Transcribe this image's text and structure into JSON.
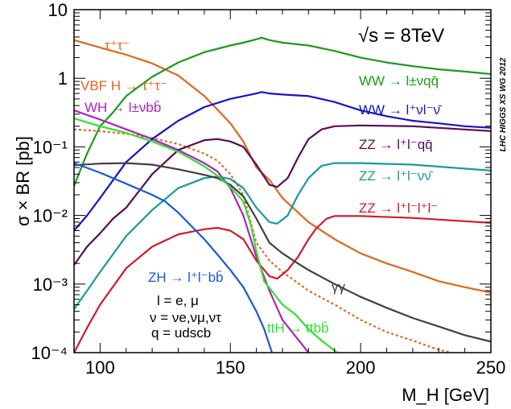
{
  "chart_data": {
    "type": "line",
    "title": "",
    "xlabel": "M_H [GeV]",
    "ylabel": "σ × BR [pb]",
    "xlim": [
      90,
      250
    ],
    "ylim": [
      0.0001,
      10
    ],
    "yscale": "log",
    "grid": false,
    "x_ticks": [
      100,
      150,
      200,
      250
    ],
    "y_ticks": [
      0.0001,
      0.001,
      0.01,
      0.1,
      1,
      10
    ],
    "y_tick_labels": [
      "10⁻⁴",
      "10⁻³",
      "10⁻²",
      "10⁻¹",
      "1",
      "10"
    ],
    "energy_label": "√s = 8TeV",
    "watermark": "LHC HIGGS XS WG 2012",
    "notes": [
      "l = e, μ",
      "ν = νe,νμ,ντ",
      "q = udscb"
    ],
    "series": [
      {
        "name": "τ⁺τ⁻",
        "color": "#e0661e",
        "dashed": false,
        "x": [
          90,
          100,
          110,
          120,
          130,
          140,
          145,
          150,
          155,
          160,
          165,
          170,
          175,
          180,
          190,
          200,
          210,
          220,
          230,
          240,
          250
        ],
        "y": [
          3.6,
          2.8,
          2.2,
          1.65,
          1.1,
          0.55,
          0.35,
          0.22,
          0.12,
          0.05,
          0.033,
          0.018,
          0.012,
          0.008,
          0.0045,
          0.0028,
          0.002,
          0.0015,
          0.0011,
          0.0009,
          0.00075
        ]
      },
      {
        "name": "VBF H → τ⁺τ⁻",
        "color": "#e0661e",
        "dashed": true,
        "x": [
          90,
          100,
          110,
          120,
          130,
          140,
          145,
          150,
          155,
          160,
          165,
          170,
          175,
          180,
          190,
          200,
          210,
          220,
          230,
          235
        ],
        "y": [
          0.18,
          0.17,
          0.155,
          0.135,
          0.11,
          0.08,
          0.063,
          0.04,
          0.02,
          0.004,
          0.0022,
          0.0015,
          0.0011,
          0.0008,
          0.0005,
          0.0003,
          0.0002,
          0.00015,
          0.00011,
          0.0001
        ]
      },
      {
        "name": "WH → l±νbb̄",
        "color": "#b020c0",
        "dashed": false,
        "x": [
          90,
          100,
          110,
          120,
          130,
          140,
          145,
          150,
          155,
          160,
          165,
          170,
          180
        ],
        "y": [
          0.34,
          0.25,
          0.18,
          0.13,
          0.09,
          0.058,
          0.044,
          0.025,
          0.01,
          0.0025,
          0.0008,
          0.0003,
          0.0001
        ]
      },
      {
        "name": "WW → l±νqq̄",
        "color": "#1c9a1c",
        "dashed": false,
        "x": [
          90,
          95,
          100,
          105,
          110,
          120,
          130,
          140,
          150,
          155,
          160,
          162,
          165,
          170,
          180,
          190,
          200,
          210,
          220,
          230,
          240,
          250
        ],
        "y": [
          0.027,
          0.08,
          0.2,
          0.32,
          0.55,
          1.05,
          1.7,
          2.4,
          3.0,
          3.3,
          3.7,
          3.9,
          3.6,
          3.3,
          3.0,
          2.5,
          2.0,
          1.7,
          1.5,
          1.35,
          1.25,
          1.15
        ]
      },
      {
        "name": "WW → l⁺νl⁻ν̄",
        "color": "#1414c8",
        "dashed": false,
        "x": [
          90,
          95,
          100,
          110,
          120,
          130,
          140,
          150,
          160,
          162,
          165,
          170,
          180,
          190,
          200,
          210,
          220,
          230,
          240,
          250
        ],
        "y": [
          0.006,
          0.01,
          0.018,
          0.06,
          0.13,
          0.24,
          0.38,
          0.5,
          0.6,
          0.63,
          0.6,
          0.58,
          0.55,
          0.45,
          0.34,
          0.28,
          0.24,
          0.22,
          0.2,
          0.19
        ]
      },
      {
        "name": "ZZ → l⁺l⁻qq̄",
        "color": "#5a0a5a",
        "dashed": false,
        "x": [
          90,
          95,
          100,
          105,
          110,
          120,
          130,
          140,
          145,
          150,
          155,
          160,
          165,
          168,
          172,
          176,
          180,
          185,
          190,
          200,
          220,
          250
        ],
        "y": [
          0.0019,
          0.0035,
          0.0055,
          0.009,
          0.013,
          0.04,
          0.09,
          0.125,
          0.13,
          0.12,
          0.1,
          0.055,
          0.028,
          0.026,
          0.035,
          0.07,
          0.13,
          0.18,
          0.2,
          0.205,
          0.2,
          0.17
        ]
      },
      {
        "name": "ZZ → l⁺l⁻νν̄",
        "color": "#1a9a9a",
        "dashed": false,
        "x": [
          90,
          95,
          100,
          110,
          120,
          130,
          140,
          145,
          150,
          155,
          160,
          165,
          168,
          172,
          176,
          180,
          185,
          190,
          200,
          220,
          250
        ],
        "y": [
          0.00043,
          0.0008,
          0.0015,
          0.005,
          0.012,
          0.025,
          0.035,
          0.037,
          0.034,
          0.025,
          0.013,
          0.008,
          0.0076,
          0.01,
          0.02,
          0.035,
          0.053,
          0.058,
          0.058,
          0.055,
          0.045
        ]
      },
      {
        "name": "ZZ → l⁺l⁻l⁺l⁻",
        "color": "#d01a2a",
        "dashed": false,
        "x": [
          90,
          95,
          100,
          110,
          120,
          130,
          140,
          145,
          150,
          155,
          160,
          165,
          168,
          172,
          176,
          180,
          183,
          187,
          190,
          200,
          220,
          250
        ],
        "y": [
          0.0001,
          0.00023,
          0.0005,
          0.0017,
          0.0035,
          0.0053,
          0.0063,
          0.0066,
          0.006,
          0.0045,
          0.0022,
          0.0013,
          0.0012,
          0.0016,
          0.0025,
          0.0045,
          0.0065,
          0.009,
          0.0098,
          0.0098,
          0.0092,
          0.0078
        ]
      },
      {
        "name": "γγ",
        "color": "#404040",
        "dashed": false,
        "x": [
          90,
          100,
          110,
          120,
          130,
          140,
          145,
          150,
          155,
          160,
          165,
          170,
          175,
          180,
          190,
          200,
          210,
          220,
          230,
          240,
          250
        ],
        "y": [
          0.054,
          0.057,
          0.058,
          0.055,
          0.047,
          0.039,
          0.035,
          0.028,
          0.019,
          0.009,
          0.004,
          0.0028,
          0.0021,
          0.0016,
          0.001,
          0.00065,
          0.00045,
          0.00032,
          0.00024,
          0.00018,
          0.000145
        ]
      },
      {
        "name": "ZH → l⁺l⁻bb̄",
        "color": "#1a5ad0",
        "dashed": false,
        "x": [
          90,
          100,
          110,
          120,
          125,
          130,
          140,
          145,
          150,
          155,
          160,
          163,
          166
        ],
        "y": [
          0.058,
          0.042,
          0.029,
          0.02,
          0.016,
          0.011,
          0.0045,
          0.0027,
          0.0016,
          0.0009,
          0.0004,
          0.00022,
          0.0001
        ]
      },
      {
        "name": "ttH → ttbb̄",
        "color": "#30e030",
        "dashed": false,
        "x": [
          90,
          100,
          110,
          120,
          130,
          140,
          145,
          150,
          155,
          158,
          160,
          163,
          167,
          170,
          175,
          180,
          185,
          191
        ],
        "y": [
          0.26,
          0.2,
          0.16,
          0.12,
          0.085,
          0.052,
          0.038,
          0.026,
          0.016,
          0.007,
          0.003,
          0.0011,
          0.0007,
          0.0005,
          0.00036,
          0.00022,
          0.00015,
          0.0001
        ]
      }
    ]
  }
}
